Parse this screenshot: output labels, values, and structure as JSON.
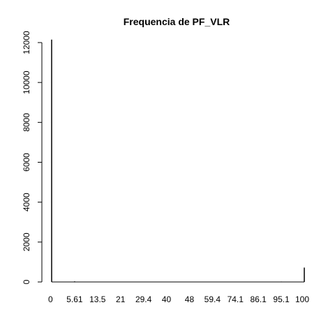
{
  "chart_data": {
    "type": "bar",
    "title": "Frequencia de PF_VLR",
    "xlabel": "",
    "ylabel": "",
    "ylim": [
      0,
      12000
    ],
    "y_ticks": [
      0,
      2000,
      4000,
      6000,
      8000,
      10000,
      12000
    ],
    "categories": [
      "0",
      "5.61",
      "13.5",
      "21",
      "29.4",
      "40",
      "48",
      "59.4",
      "74.1",
      "86.1",
      "95.1",
      "100"
    ],
    "values": [
      12150,
      30,
      10,
      8,
      8,
      6,
      6,
      5,
      4,
      4,
      20,
      720
    ],
    "bar_color": "#000000",
    "grid": false,
    "legend": "none"
  }
}
